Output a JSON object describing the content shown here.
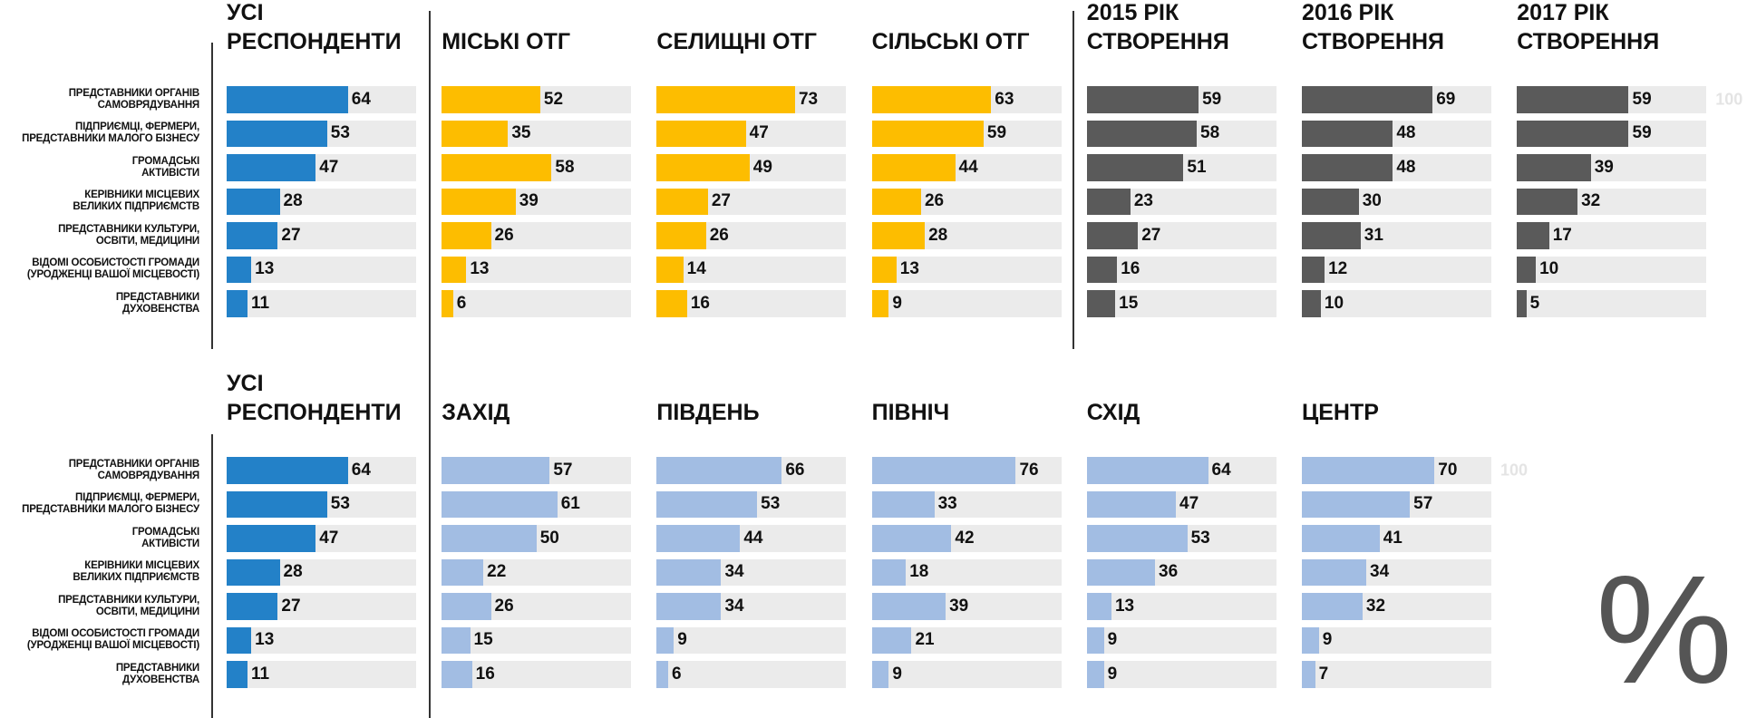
{
  "chart_data": [
    {
      "type": "bar",
      "categories": [
        "ПРЕДСТАВНИКИ ОРГАНІВ\nСАМОВРЯДУВАННЯ",
        "ПІДПРИЄМЦІ, ФЕРМЕРИ,\nПРЕДСТАВНИКИ МАЛОГО БІЗНЕСУ",
        "ГРОМАДСЬКІ\nАКТИВІСТИ",
        "КЕРІВНИКИ МІСЦЕВИХ\nВЕЛИКИХ ПІДПРИЄМСТВ",
        "ПРЕДСТАВНИКИ КУЛЬТУРИ,\nОСВІТИ, МЕДИЦИНИ",
        "ВІДОМІ ОСОБИСТОСТІ ГРОМАДИ\n(УРОДЖЕНЦІ ВАШОЇ МІСЦЕВОСТІ)",
        "ПРЕДСТАВНИКИ\nДУХОВЕНСТВА"
      ],
      "xlim": [
        0,
        100
      ],
      "xticks": [
        100
      ],
      "series": [
        {
          "name": "УСІ РЕСПОНДЕНТИ",
          "color": "#2381c8",
          "values": [
            64,
            53,
            47,
            28,
            27,
            13,
            11
          ]
        },
        {
          "name": "МІСЬКІ ОТГ",
          "color": "#fdbd00",
          "values": [
            52,
            35,
            58,
            39,
            26,
            13,
            6
          ]
        },
        {
          "name": "СЕЛИЩНІ ОТГ",
          "color": "#fdbd00",
          "values": [
            73,
            47,
            49,
            27,
            26,
            14,
            16
          ]
        },
        {
          "name": "СІЛЬСЬКІ ОТГ",
          "color": "#fdbd00",
          "values": [
            63,
            59,
            44,
            26,
            28,
            13,
            9
          ]
        },
        {
          "name": "2015 РІК СТВОРЕННЯ",
          "color": "#5a5a5a",
          "values": [
            59,
            58,
            51,
            23,
            27,
            16,
            15
          ]
        },
        {
          "name": "2016 РІК СТВОРЕННЯ",
          "color": "#5a5a5a",
          "values": [
            69,
            48,
            48,
            30,
            31,
            12,
            10
          ]
        },
        {
          "name": "2017 РІК СТВОРЕННЯ",
          "color": "#5a5a5a",
          "values": [
            59,
            59,
            39,
            32,
            17,
            10,
            5
          ]
        }
      ]
    },
    {
      "type": "bar",
      "categories": [
        "ПРЕДСТАВНИКИ ОРГАНІВ\nСАМОВРЯДУВАННЯ",
        "ПІДПРИЄМЦІ, ФЕРМЕРИ,\nПРЕДСТАВНИКИ МАЛОГО БІЗНЕСУ",
        "ГРОМАДСЬКІ\nАКТИВІСТИ",
        "КЕРІВНИКИ МІСЦЕВИХ\nВЕЛИКИХ ПІДПРИЄМСТВ",
        "ПРЕДСТАВНИКИ КУЛЬТУРИ,\nОСВІТИ, МЕДИЦИНИ",
        "ВІДОМІ ОСОБИСТОСТІ ГРОМАДИ\n(УРОДЖЕНЦІ ВАШОЇ МІСЦЕВОСТІ)",
        "ПРЕДСТАВНИКИ\nДУХОВЕНСТВА"
      ],
      "xlim": [
        0,
        100
      ],
      "xticks": [
        100
      ],
      "annotation": "%",
      "series": [
        {
          "name": "УСІ РЕСПОНДЕНТИ",
          "color": "#2381c8",
          "values": [
            64,
            53,
            47,
            28,
            27,
            13,
            11
          ]
        },
        {
          "name": "ЗАХІД",
          "color": "#a2bde3",
          "values": [
            57,
            61,
            50,
            22,
            26,
            15,
            16
          ]
        },
        {
          "name": "ПІВДЕНЬ",
          "color": "#a2bde3",
          "values": [
            66,
            53,
            44,
            34,
            34,
            9,
            6
          ]
        },
        {
          "name": "ПІВНІЧ",
          "color": "#a2bde3",
          "values": [
            76,
            33,
            42,
            18,
            39,
            21,
            9
          ]
        },
        {
          "name": "СХІД",
          "color": "#a2bde3",
          "values": [
            64,
            47,
            53,
            36,
            13,
            9,
            9
          ]
        },
        {
          "name": "ЦЕНТР",
          "color": "#a2bde3",
          "values": [
            70,
            57,
            41,
            34,
            32,
            9,
            7
          ]
        }
      ]
    }
  ]
}
